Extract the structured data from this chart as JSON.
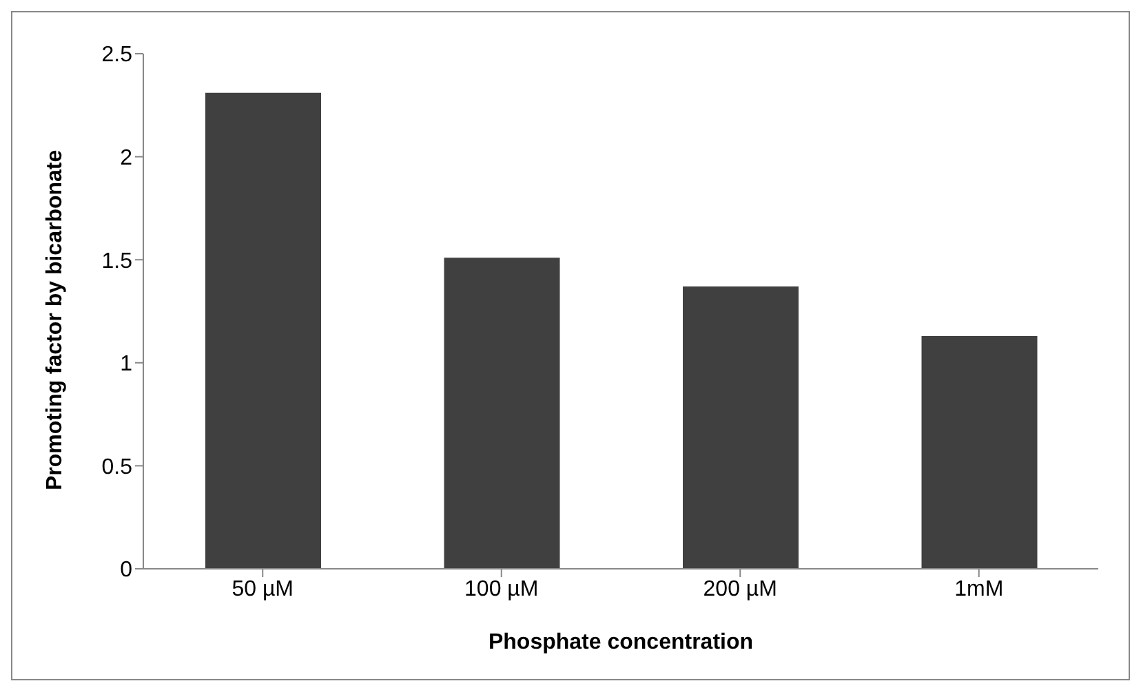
{
  "chart_data": {
    "type": "bar",
    "xlabel": "Phosphate concentration",
    "ylabel": "Promoting factor by bicarbonate",
    "categories": [
      "50 µM",
      "100 µM",
      "200 µM",
      "1mM"
    ],
    "values": [
      2.31,
      1.51,
      1.37,
      1.13
    ],
    "color": "#404040",
    "ylim": [
      0,
      2.5
    ],
    "yticks": [
      0,
      0.5,
      1,
      1.5,
      2,
      2.5
    ],
    "grid": false,
    "legend": false
  }
}
